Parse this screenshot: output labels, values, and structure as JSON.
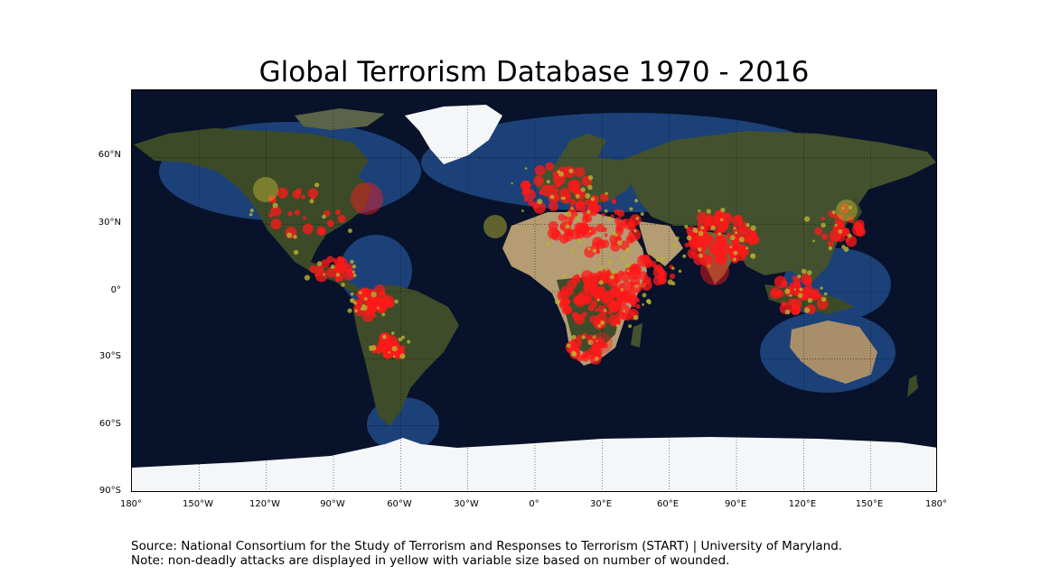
{
  "title": "Global Terrorism Database 1970 - 2016",
  "map": {
    "projection": "equirectangular",
    "lat_labels": [
      "60°N",
      "30°N",
      "0°",
      "30°S",
      "60°S",
      "90°S"
    ],
    "lon_labels": [
      "180°",
      "150°W",
      "120°W",
      "90°W",
      "60°W",
      "30°W",
      "0°",
      "30°E",
      "60°E",
      "90°E",
      "120°E",
      "150°E",
      "180°"
    ],
    "colors": {
      "ocean_deep": "#08122a",
      "ocean_shelf": "#1f4a86",
      "land": "#3a4a26",
      "desert": "#b59c73",
      "ice": "#f4f6f8",
      "deadly": "#ff1a1a",
      "non_deadly": "#b9b332"
    }
  },
  "source": {
    "line1": "Source: National Consortium for the Study of Terrorism and Responses to Terrorism (START) | University of Maryland.",
    "line2": "Note: non-deadly attacks are displayed in yellow with variable size based on number of wounded."
  }
}
